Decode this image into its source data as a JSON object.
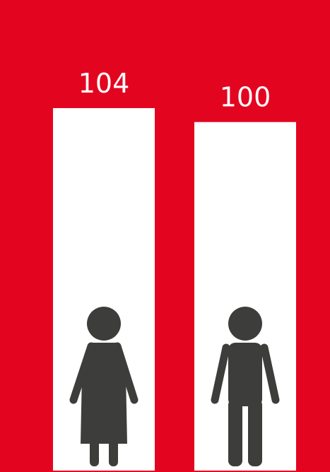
{
  "colors": {
    "background": "#e30520",
    "bar": "#ffffff",
    "icon": "#3d3d3b",
    "label": "#ffffff"
  },
  "chart_data": {
    "type": "bar",
    "categories": [
      "",
      ""
    ],
    "category_icons": [
      "woman-icon",
      "man-icon"
    ],
    "values": [
      104,
      100
    ],
    "data_labels": [
      "104",
      "100"
    ],
    "title": "",
    "xlabel": "",
    "ylabel": "",
    "ylim": [
      0,
      104
    ],
    "grid": false,
    "legend": "none"
  }
}
